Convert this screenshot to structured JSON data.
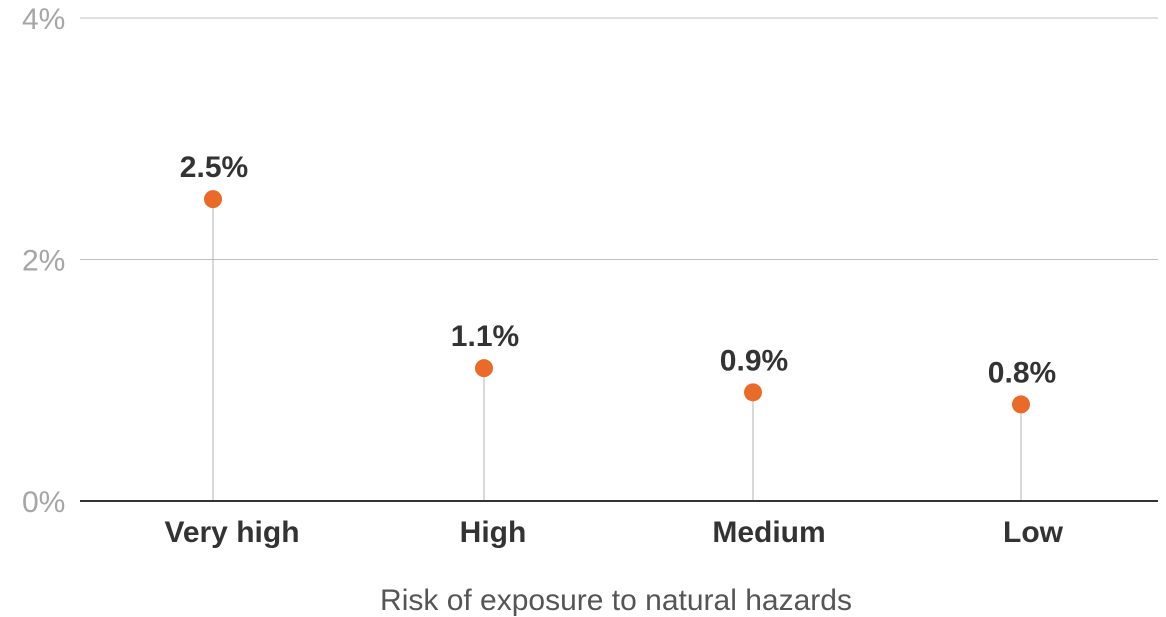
{
  "chart_data": {
    "type": "scatter",
    "style": "lollipop",
    "categories": [
      "Very high",
      "High",
      "Medium",
      "Low"
    ],
    "values": [
      2.5,
      1.1,
      0.9,
      0.8
    ],
    "value_labels": [
      "2.5%",
      "1.1%",
      "0.9%",
      "0.8%"
    ],
    "title": "",
    "xlabel": "Risk of exposure to natural hazards",
    "ylabel": "",
    "ylim": [
      0,
      4
    ],
    "yticks": [
      0,
      2,
      4
    ],
    "ytick_labels": [
      "0%",
      "2%",
      "4%"
    ],
    "grid": true,
    "colors": {
      "marker": "#ea6a2a",
      "stem": "#b3b3b3",
      "grid": "#bfbfbf",
      "baseline": "#333333"
    }
  }
}
